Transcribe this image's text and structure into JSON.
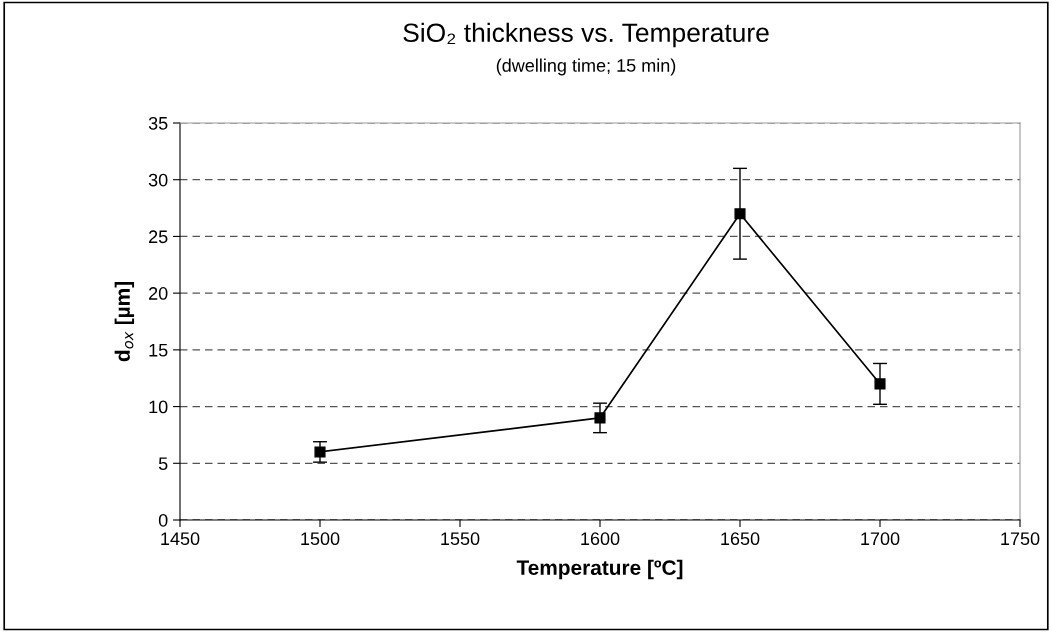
{
  "chart_data": {
    "type": "line",
    "title": "SiO₂ thickness vs. Temperature",
    "subtitle": "(dwelling time; 15 min)",
    "xlabel": "Temperature [ºC]",
    "ylabel": "d$_{ox}$ [µm]",
    "x": [
      1500,
      1600,
      1650,
      1700
    ],
    "series": [
      {
        "color": "#000000",
        "values": [
          6,
          9,
          27,
          12
        ],
        "errors": [
          0.9,
          1.3,
          4,
          1.8
        ]
      }
    ],
    "xlim": [
      1450,
      1750
    ],
    "xticks": [
      1450,
      1500,
      1550,
      1600,
      1650,
      1700,
      1750
    ],
    "ylim": [
      0,
      35
    ],
    "yticks": [
      0,
      5,
      10,
      15,
      20,
      25,
      30,
      35
    ],
    "grid": "y",
    "legend": false,
    "marker": "square",
    "line_style": "solid"
  }
}
